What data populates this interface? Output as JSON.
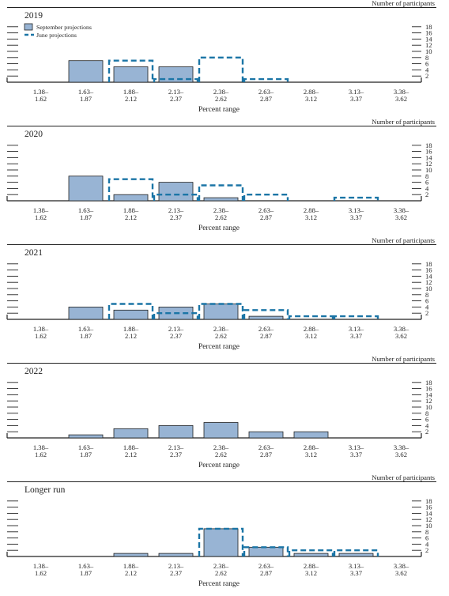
{
  "colors": {
    "september_fill": "#98b4d4",
    "september_stroke": "#222222",
    "june_stroke": "#1b75a6",
    "axis": "#222222",
    "text": "#222222"
  },
  "legend": {
    "september_label": "September projections",
    "june_label": "June projections"
  },
  "chart_data": [
    {
      "type": "bar",
      "title": "2019",
      "ylabel": "Number of participants",
      "xlabel": "Percent range",
      "ylim": [
        0,
        18
      ],
      "yticks": [
        "2",
        "4",
        "6",
        "8",
        "10",
        "12",
        "14",
        "16",
        "18"
      ],
      "categories": [
        [
          "1.38–",
          "1.62"
        ],
        [
          "1.63–",
          "1.87"
        ],
        [
          "1.88–",
          "2.12"
        ],
        [
          "2.13–",
          "2.37"
        ],
        [
          "2.38–",
          "2.62"
        ],
        [
          "2.63–",
          "2.87"
        ],
        [
          "2.88–",
          "3.12"
        ],
        [
          "3.13–",
          "3.37"
        ],
        [
          "3.38–",
          "3.62"
        ]
      ],
      "series": [
        {
          "name": "September projections",
          "values": [
            0,
            7,
            5,
            5,
            0,
            0,
            0,
            0,
            0
          ]
        },
        {
          "name": "June projections",
          "values": [
            0,
            0,
            7,
            1,
            8,
            1,
            0,
            0,
            0
          ]
        }
      ],
      "legend": "top-left"
    },
    {
      "type": "bar",
      "title": "2020",
      "ylabel": "Number of participants",
      "xlabel": "Percent range",
      "ylim": [
        0,
        18
      ],
      "yticks": [
        "2",
        "4",
        "6",
        "8",
        "10",
        "12",
        "14",
        "16",
        "18"
      ],
      "categories": [
        [
          "1.38–",
          "1.62"
        ],
        [
          "1.63–",
          "1.87"
        ],
        [
          "1.88–",
          "2.12"
        ],
        [
          "2.13–",
          "2.37"
        ],
        [
          "2.38–",
          "2.62"
        ],
        [
          "2.63–",
          "2.87"
        ],
        [
          "2.88–",
          "3.12"
        ],
        [
          "3.13–",
          "3.37"
        ],
        [
          "3.38–",
          "3.62"
        ]
      ],
      "series": [
        {
          "name": "September projections",
          "values": [
            0,
            8,
            2,
            6,
            1,
            0,
            0,
            0,
            0
          ]
        },
        {
          "name": "June projections",
          "values": [
            0,
            0,
            7,
            2,
            5,
            2,
            0,
            1,
            0
          ]
        }
      ]
    },
    {
      "type": "bar",
      "title": "2021",
      "ylabel": "Number of participants",
      "xlabel": "Percent range",
      "ylim": [
        0,
        18
      ],
      "yticks": [
        "2",
        "4",
        "6",
        "8",
        "10",
        "12",
        "14",
        "16",
        "18"
      ],
      "categories": [
        [
          "1.38–",
          "1.62"
        ],
        [
          "1.63–",
          "1.87"
        ],
        [
          "1.88–",
          "2.12"
        ],
        [
          "2.13–",
          "2.37"
        ],
        [
          "2.38–",
          "2.62"
        ],
        [
          "2.63–",
          "2.87"
        ],
        [
          "2.88–",
          "3.12"
        ],
        [
          "3.13–",
          "3.37"
        ],
        [
          "3.38–",
          "3.62"
        ]
      ],
      "series": [
        {
          "name": "September projections",
          "values": [
            0,
            4,
            3,
            4,
            5,
            1,
            0,
            0,
            0
          ]
        },
        {
          "name": "June projections",
          "values": [
            0,
            0,
            5,
            2,
            5,
            3,
            1,
            1,
            0
          ]
        }
      ]
    },
    {
      "type": "bar",
      "title": "2022",
      "ylabel": "Number of participants",
      "xlabel": "Percent range",
      "ylim": [
        0,
        18
      ],
      "yticks": [
        "2",
        "4",
        "6",
        "8",
        "10",
        "12",
        "14",
        "16",
        "18"
      ],
      "categories": [
        [
          "1.38–",
          "1.62"
        ],
        [
          "1.63–",
          "1.87"
        ],
        [
          "1.88–",
          "2.12"
        ],
        [
          "2.13–",
          "2.37"
        ],
        [
          "2.38–",
          "2.62"
        ],
        [
          "2.63–",
          "2.87"
        ],
        [
          "2.88–",
          "3.12"
        ],
        [
          "3.13–",
          "3.37"
        ],
        [
          "3.38–",
          "3.62"
        ]
      ],
      "series": [
        {
          "name": "September projections",
          "values": [
            0,
            1,
            3,
            4,
            5,
            2,
            2,
            0,
            0
          ]
        }
      ]
    },
    {
      "type": "bar",
      "title": "Longer run",
      "ylabel": "Number of participants",
      "xlabel": "Percent range",
      "ylim": [
        0,
        18
      ],
      "yticks": [
        "2",
        "4",
        "6",
        "8",
        "10",
        "12",
        "14",
        "16",
        "18"
      ],
      "categories": [
        [
          "1.38–",
          "1.62"
        ],
        [
          "1.63–",
          "1.87"
        ],
        [
          "1.88–",
          "2.12"
        ],
        [
          "2.13–",
          "2.37"
        ],
        [
          "2.38–",
          "2.62"
        ],
        [
          "2.63–",
          "2.87"
        ],
        [
          "2.88–",
          "3.12"
        ],
        [
          "3.13–",
          "3.37"
        ],
        [
          "3.38–",
          "3.62"
        ]
      ],
      "series": [
        {
          "name": "September projections",
          "values": [
            0,
            0,
            1,
            1,
            9,
            3,
            1,
            1,
            0
          ]
        },
        {
          "name": "June projections",
          "values": [
            0,
            0,
            0,
            0,
            9,
            3,
            2,
            2,
            0
          ]
        }
      ]
    }
  ]
}
